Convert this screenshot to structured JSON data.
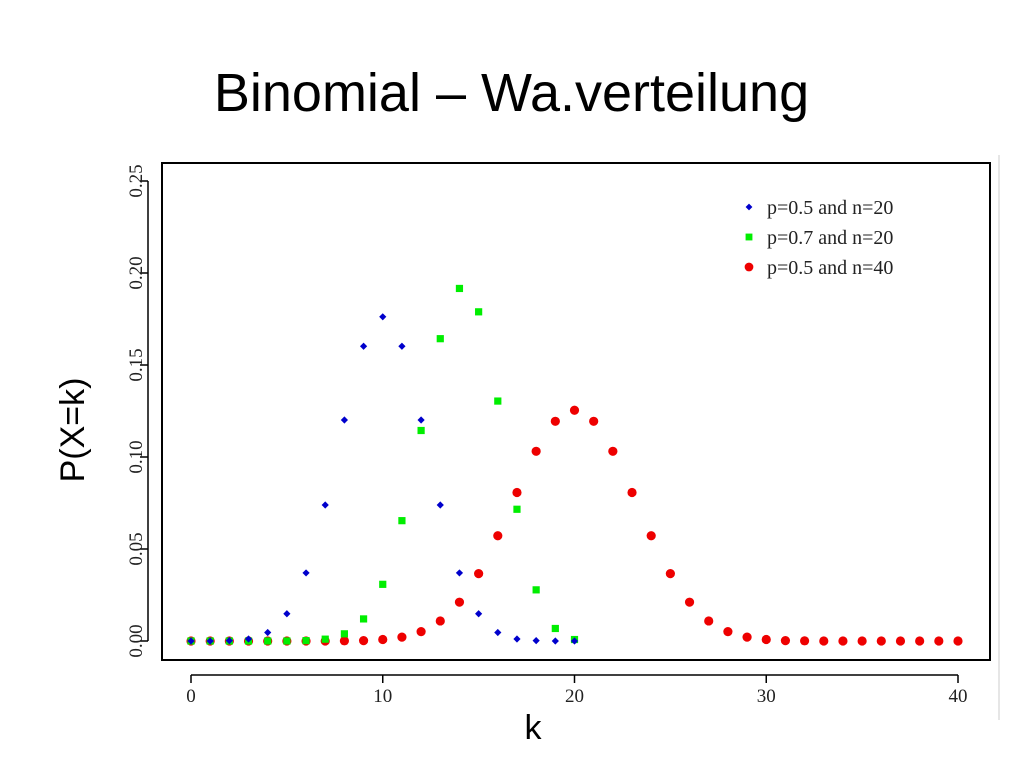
{
  "slide": {
    "title": "Binomial – Wa.verteilung"
  },
  "chart_data": {
    "type": "scatter",
    "title": "",
    "xlabel": "k",
    "ylabel": "P(X=k)",
    "xlim": [
      0,
      40
    ],
    "ylim": [
      0,
      0.25
    ],
    "x_ticks": [
      "0",
      "10",
      "20",
      "30",
      "40"
    ],
    "y_ticks": [
      "0.00",
      "0.05",
      "0.10",
      "0.15",
      "0.20",
      "0.25"
    ],
    "grid": false,
    "legend_position": "top-right",
    "series": [
      {
        "name": "p=0.5 and n=20",
        "marker": "diamond",
        "color": "#0000cc",
        "x": [
          0,
          1,
          2,
          3,
          4,
          5,
          6,
          7,
          8,
          9,
          10,
          11,
          12,
          13,
          14,
          15,
          16,
          17,
          18,
          19,
          20
        ],
        "values": [
          0.0,
          0.0,
          0.0002,
          0.0011,
          0.0046,
          0.0148,
          0.037,
          0.0739,
          0.1201,
          0.1602,
          0.1762,
          0.1602,
          0.1201,
          0.0739,
          0.037,
          0.0148,
          0.0046,
          0.0011,
          0.0002,
          0.0,
          0.0
        ]
      },
      {
        "name": "p=0.7 and n=20",
        "marker": "square",
        "color": "#00ee00",
        "x": [
          0,
          1,
          2,
          3,
          4,
          5,
          6,
          7,
          8,
          9,
          10,
          11,
          12,
          13,
          14,
          15,
          16,
          17,
          18,
          19,
          20
        ],
        "values": [
          0.0,
          0.0,
          0.0,
          0.0,
          0.0,
          0.0,
          0.0002,
          0.001,
          0.0039,
          0.012,
          0.0308,
          0.0654,
          0.1144,
          0.1643,
          0.1916,
          0.1789,
          0.1304,
          0.0716,
          0.0278,
          0.0068,
          0.0008
        ]
      },
      {
        "name": "p=0.5 and n=40",
        "marker": "circle",
        "color": "#ee0000",
        "x": [
          0,
          1,
          2,
          3,
          4,
          5,
          6,
          7,
          8,
          9,
          10,
          11,
          12,
          13,
          14,
          15,
          16,
          17,
          18,
          19,
          20,
          21,
          22,
          23,
          24,
          25,
          26,
          27,
          28,
          29,
          30,
          31,
          32,
          33,
          34,
          35,
          36,
          37,
          38,
          39,
          40
        ],
        "values": [
          0.0,
          0.0,
          0.0,
          0.0,
          0.0,
          0.0,
          0.0,
          0.0,
          0.0001,
          0.0002,
          0.0008,
          0.0021,
          0.0051,
          0.0109,
          0.0211,
          0.0366,
          0.0572,
          0.0807,
          0.1031,
          0.1194,
          0.1254,
          0.1194,
          0.1031,
          0.0807,
          0.0572,
          0.0366,
          0.0211,
          0.0109,
          0.0051,
          0.0021,
          0.0008,
          0.0002,
          0.0001,
          0.0,
          0.0,
          0.0,
          0.0,
          0.0,
          0.0,
          0.0,
          0.0
        ]
      }
    ]
  }
}
